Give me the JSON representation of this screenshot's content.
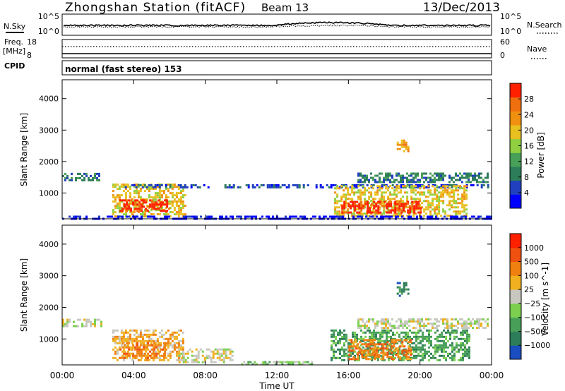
{
  "header": {
    "title": "Zhongshan Station (fitACF)",
    "beam": "Beam 13",
    "date": "13/Dec/2013"
  },
  "top_panels": {
    "nsky_label": "N.Sky",
    "nsky_ticks": [
      "10^5",
      "10^0"
    ],
    "nsearch_label": "N.Search",
    "nsearch_ticks": [
      "10^5",
      "10^0"
    ],
    "freq_label_1": "Freq.",
    "freq_label_2": "[MHz]",
    "freq_ticks": [
      "18",
      "8"
    ],
    "nave_label": "Nave",
    "nave_ticks": [
      "60",
      "0"
    ],
    "cpid_label": "CPID",
    "cpid_text": "normal (fast stereo) 153"
  },
  "chart_data": [
    {
      "type": "heatmap",
      "title": "",
      "xlabel": "Time UT",
      "ylabel": "Slant Range [km]",
      "x_ticks": [
        "00:00",
        "04:00",
        "08:00",
        "12:00",
        "16:00",
        "20:00",
        "00:00"
      ],
      "xlim_hours": [
        0,
        24
      ],
      "y_ticks": [
        1000,
        2000,
        3000,
        4000
      ],
      "ylim_km": [
        180,
        4600
      ],
      "colorbar": {
        "label": "Power [dB]",
        "ticks": [
          "28",
          "24",
          "20",
          "16",
          "12",
          "8",
          "4"
        ],
        "colors": [
          "#0000ff",
          "#2040c0",
          "#2e7d5a",
          "#48a058",
          "#90d040",
          "#e8c020",
          "#f09010",
          "#f07010",
          "#ff2000"
        ]
      },
      "regions": [
        {
          "t0": 0.0,
          "t1": 2.2,
          "r0": 1380,
          "r1": 1640,
          "level": 2
        },
        {
          "t0": 2.8,
          "t1": 6.9,
          "r0": 250,
          "r1": 1300,
          "level": 5
        },
        {
          "t0": 3.2,
          "t1": 6.0,
          "r0": 400,
          "r1": 800,
          "level": 8
        },
        {
          "t0": 3.5,
          "t1": 23.8,
          "r0": 1150,
          "r1": 1280,
          "level": 1
        },
        {
          "t0": 15.2,
          "t1": 22.6,
          "r0": 300,
          "r1": 1250,
          "level": 5
        },
        {
          "t0": 15.6,
          "t1": 20.0,
          "r0": 350,
          "r1": 750,
          "level": 8
        },
        {
          "t0": 16.5,
          "t1": 23.8,
          "r0": 1350,
          "r1": 1650,
          "level": 2
        },
        {
          "t0": 18.7,
          "t1": 19.3,
          "r0": 2350,
          "r1": 2700,
          "level": 6
        },
        {
          "t0": 0.0,
          "t1": 24.0,
          "r0": 180,
          "r1": 280,
          "level": 0
        }
      ]
    },
    {
      "type": "heatmap",
      "title": "",
      "xlabel": "Time UT",
      "ylabel": "Slant Range [km]",
      "x_ticks": [
        "00:00",
        "04:00",
        "08:00",
        "12:00",
        "16:00",
        "20:00",
        "00:00"
      ],
      "xlim_hours": [
        0,
        24
      ],
      "y_ticks": [
        1000,
        2000,
        3000,
        4000
      ],
      "ylim_km": [
        180,
        4600
      ],
      "colorbar": {
        "label": "Velocity [m s^-1]",
        "ticks": [
          "1000",
          "500",
          "100",
          "25",
          "−25",
          "−100",
          "−500",
          "−1000"
        ],
        "colors": [
          "#1a4ec0",
          "#2e7d5a",
          "#48a058",
          "#7cd050",
          "#c8c8c0",
          "#f0b020",
          "#f08010",
          "#f05010",
          "#ff2000"
        ]
      },
      "regions": [
        {
          "t0": 0.0,
          "t1": 2.2,
          "r0": 1380,
          "r1": 1640,
          "level": 4
        },
        {
          "t0": 2.8,
          "t1": 6.8,
          "r0": 300,
          "r1": 1300,
          "level": 5
        },
        {
          "t0": 3.2,
          "t1": 5.8,
          "r0": 400,
          "r1": 900,
          "level": 6
        },
        {
          "t0": 6.5,
          "t1": 9.5,
          "r0": 250,
          "r1": 700,
          "level": 4
        },
        {
          "t0": 15.0,
          "t1": 22.8,
          "r0": 300,
          "r1": 1300,
          "level": 2
        },
        {
          "t0": 16.0,
          "t1": 19.5,
          "r0": 350,
          "r1": 1000,
          "level": 6
        },
        {
          "t0": 16.5,
          "t1": 23.8,
          "r0": 1350,
          "r1": 1650,
          "level": 4
        },
        {
          "t0": 18.7,
          "t1": 19.3,
          "r0": 2350,
          "r1": 2800,
          "level": 1
        },
        {
          "t0": 10.0,
          "t1": 14.0,
          "r0": 180,
          "r1": 300,
          "level": 3
        }
      ]
    }
  ]
}
